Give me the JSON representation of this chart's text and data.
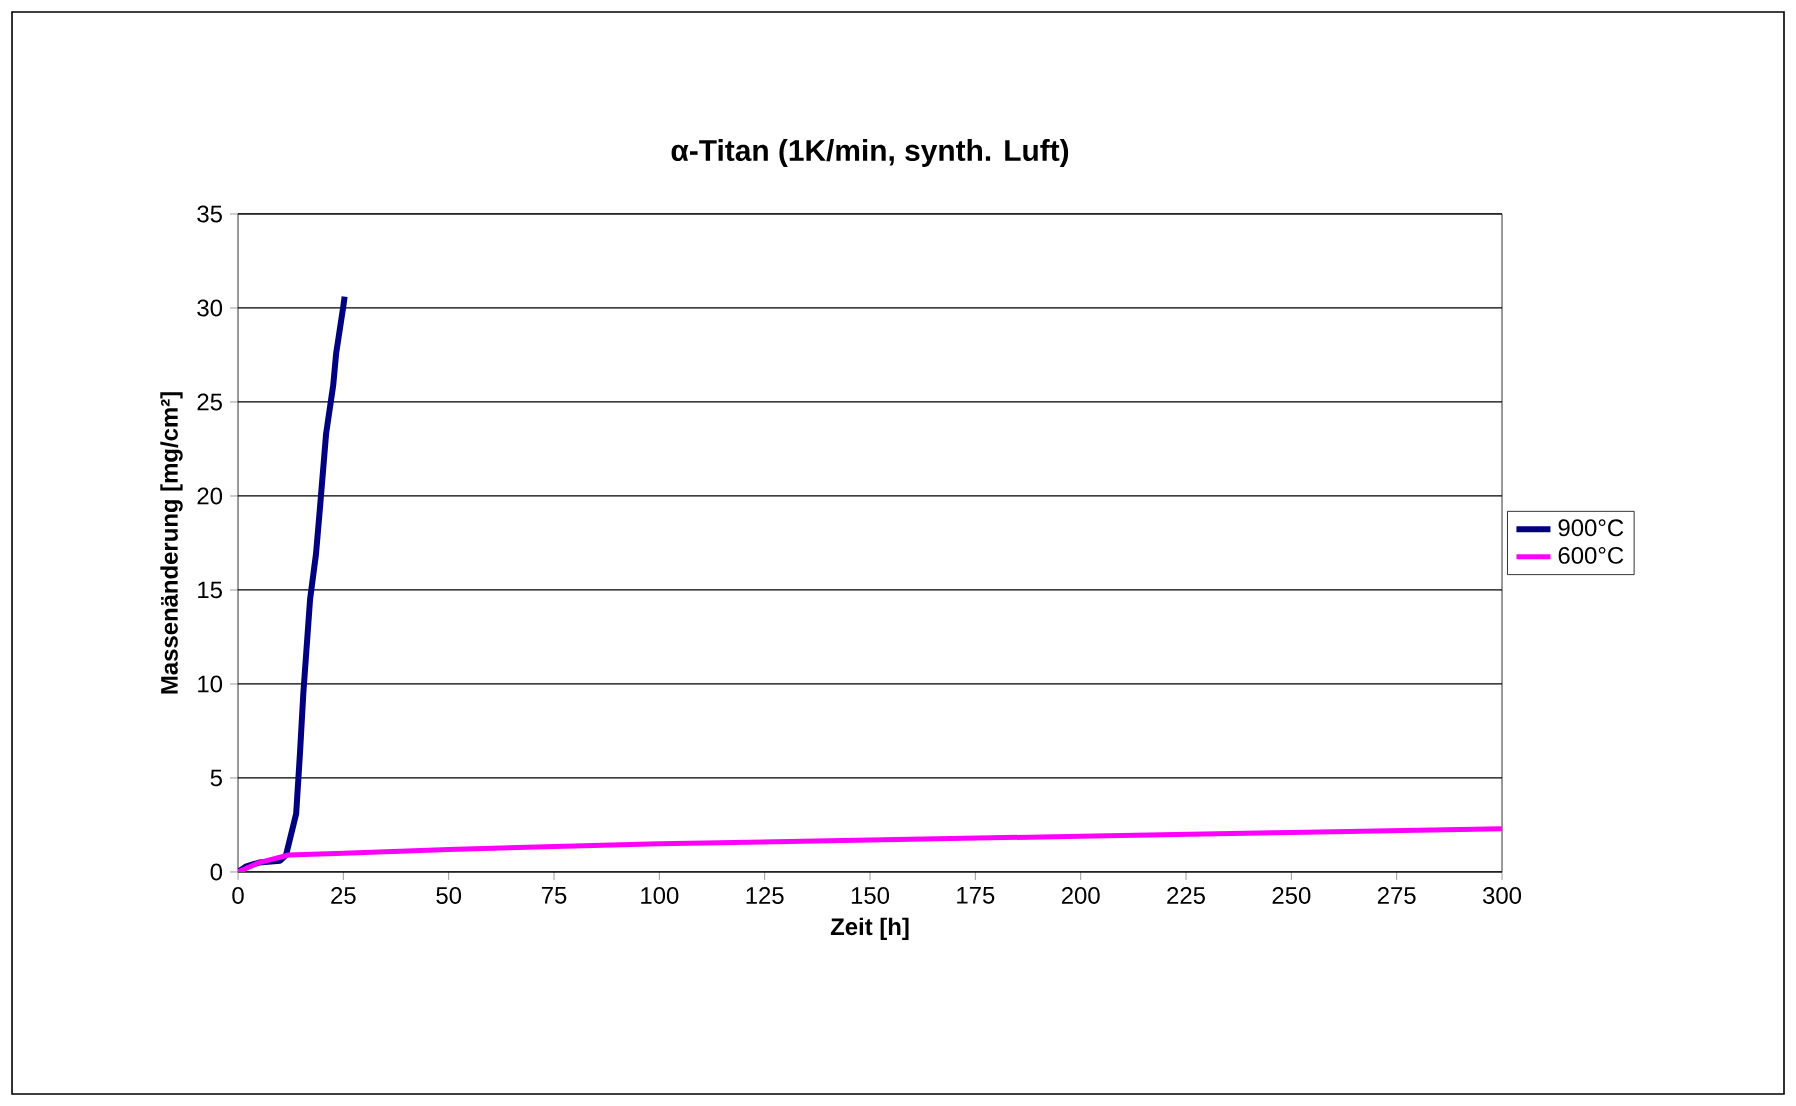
{
  "chart_data": {
    "type": "line",
    "title": "α-Titan (1K/min, synth. Luft)",
    "xlabel": "Zeit [h]",
    "ylabel": "Massenänderung [mg/cm²]",
    "xlim": [
      0,
      300
    ],
    "xticks": [
      0,
      25,
      50,
      75,
      100,
      125,
      150,
      175,
      200,
      225,
      250,
      275,
      300
    ],
    "ylim": [
      0,
      35
    ],
    "yticks": [
      0,
      5,
      10,
      15,
      20,
      25,
      30,
      35
    ],
    "grid": "y",
    "legend": "right",
    "marker": "none",
    "line_style": "solid",
    "series": [
      {
        "name": "900°C",
        "color": "#000080",
        "x": [
          0,
          2,
          5,
          10,
          11.4,
          13.8,
          14.7,
          15.5,
          17.1,
          18.5,
          19.5,
          20.9,
          22.6,
          23.3,
          25.0,
          25.3
        ],
        "values": [
          0,
          0.3,
          0.5,
          0.6,
          0.9,
          3.1,
          6.3,
          9.5,
          14.5,
          16.9,
          19.5,
          23.3,
          25.9,
          27.6,
          30.1,
          30.6
        ]
      },
      {
        "name": "600°C",
        "color": "#ff00ff",
        "x": [
          0,
          5,
          12,
          25,
          50,
          100,
          150,
          200,
          250,
          300
        ],
        "values": [
          0,
          0.5,
          0.9,
          1.0,
          1.2,
          1.5,
          1.7,
          1.9,
          2.1,
          2.3
        ]
      }
    ]
  }
}
